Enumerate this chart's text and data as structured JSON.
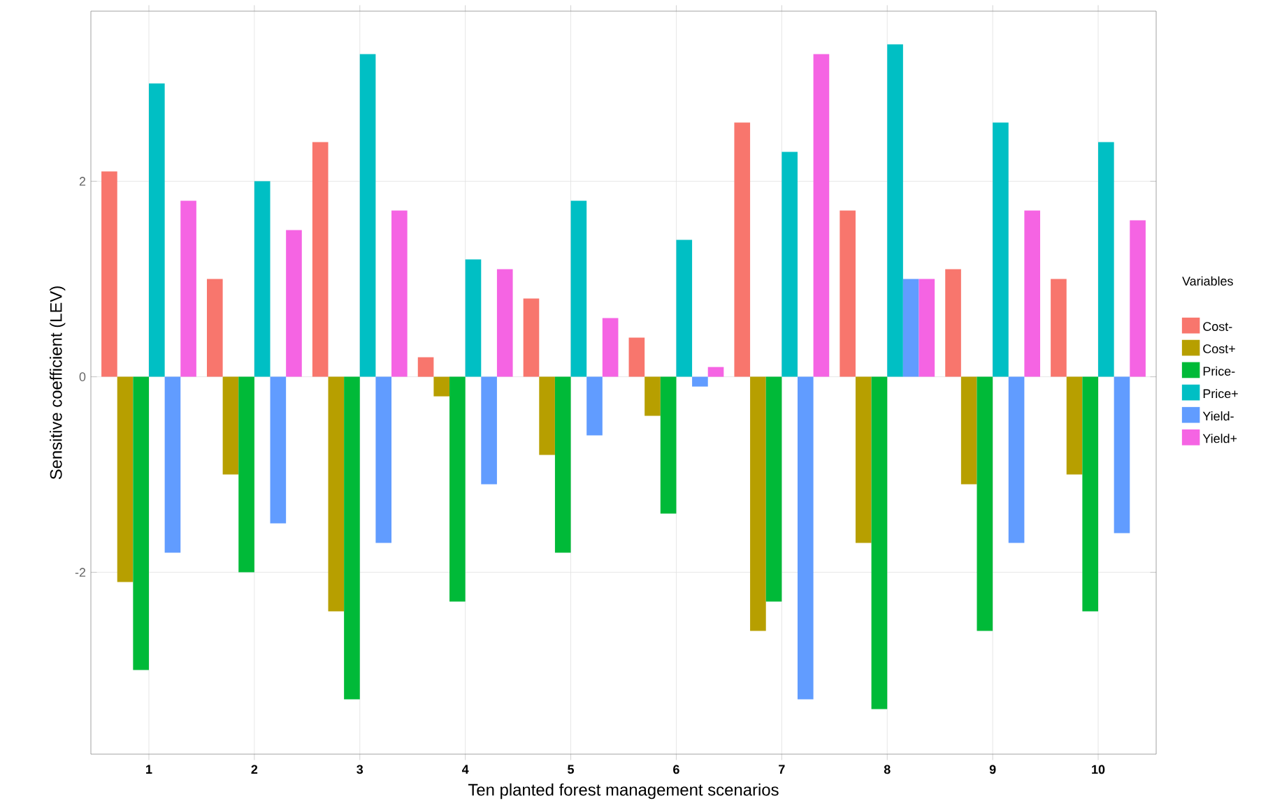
{
  "chart_data": {
    "type": "bar",
    "xlabel": "Ten planted forest management scenarios",
    "ylabel": "Sensitive coefficient (LEV)",
    "legend_title": "Variables",
    "legend": "right",
    "grid": true,
    "categories": [
      "1",
      "2",
      "3",
      "4",
      "5",
      "6",
      "7",
      "8",
      "9",
      "10"
    ],
    "ylim": [
      -3.86,
      3.74
    ],
    "yticks": [
      -2,
      0,
      2
    ],
    "series": [
      {
        "name": "Cost-",
        "color": "#f8766d",
        "values": [
          2.1,
          1.0,
          2.4,
          0.2,
          0.8,
          0.4,
          2.6,
          1.7,
          1.1,
          1.0
        ]
      },
      {
        "name": "Cost+",
        "color": "#b79f00",
        "values": [
          -2.1,
          -1.0,
          -2.4,
          -0.2,
          -0.8,
          -0.4,
          -2.6,
          -1.7,
          -1.1,
          -1.0
        ]
      },
      {
        "name": "Price-",
        "color": "#00ba38",
        "values": [
          -3.0,
          -2.0,
          -3.3,
          -2.3,
          -1.8,
          -1.4,
          -2.3,
          -3.4,
          -2.6,
          -2.4
        ]
      },
      {
        "name": "Price+",
        "color": "#00bfc4",
        "values": [
          3.0,
          2.0,
          3.3,
          1.2,
          1.8,
          1.4,
          2.3,
          3.4,
          2.6,
          2.4
        ]
      },
      {
        "name": "Yield-",
        "color": "#619cff",
        "values": [
          -1.8,
          -1.5,
          -1.7,
          -1.1,
          -0.6,
          -0.1,
          -3.3,
          1.0,
          -1.7,
          -1.6
        ]
      },
      {
        "name": "Yield+",
        "color": "#f564e3",
        "values": [
          1.8,
          1.5,
          1.7,
          1.1,
          0.6,
          0.1,
          3.3,
          1.0,
          1.7,
          1.6
        ]
      }
    ]
  }
}
